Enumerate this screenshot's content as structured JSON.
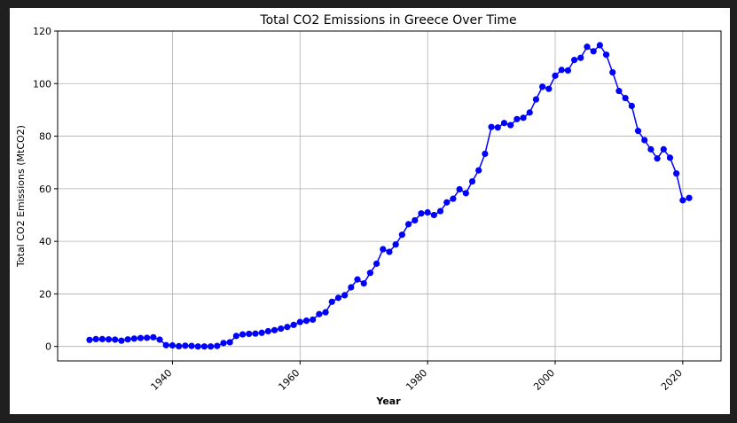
{
  "chart_data": {
    "type": "line",
    "title": "Total CO2 Emissions in Greece Over Time",
    "xlabel": "Year",
    "ylabel": "Total CO2 Emissions (MtCO2)",
    "xlim": [
      1922,
      2026
    ],
    "ylim": [
      -5.5,
      120
    ],
    "xticks": [
      "1940",
      "1960",
      "1980",
      "2000",
      "2020"
    ],
    "xtick_values": [
      1940,
      1960,
      1980,
      2000,
      2020
    ],
    "yticks": [
      "0",
      "20",
      "40",
      "60",
      "80",
      "100",
      "120"
    ],
    "ytick_values": [
      0,
      20,
      40,
      60,
      80,
      100,
      120
    ],
    "grid": true,
    "series_color": "#0000ff",
    "x": [
      1927,
      1928,
      1929,
      1930,
      1931,
      1932,
      1933,
      1934,
      1935,
      1936,
      1937,
      1938,
      1939,
      1940,
      1941,
      1942,
      1943,
      1944,
      1945,
      1946,
      1947,
      1948,
      1949,
      1950,
      1951,
      1952,
      1953,
      1954,
      1955,
      1956,
      1957,
      1958,
      1959,
      1960,
      1961,
      1962,
      1963,
      1964,
      1965,
      1966,
      1967,
      1968,
      1969,
      1970,
      1971,
      1972,
      1973,
      1974,
      1975,
      1976,
      1977,
      1978,
      1979,
      1980,
      1981,
      1982,
      1983,
      1984,
      1985,
      1986,
      1987,
      1988,
      1989,
      1990,
      1991,
      1992,
      1993,
      1994,
      1995,
      1996,
      1997,
      1998,
      1999,
      2000,
      2001,
      2002,
      2003,
      2004,
      2005,
      2006,
      2007,
      2008,
      2009,
      2010,
      2011,
      2012,
      2013,
      2014,
      2015,
      2016,
      2017,
      2018,
      2019,
      2020,
      2021
    ],
    "y": [
      2.5,
      2.8,
      2.8,
      2.7,
      2.6,
      2.2,
      2.7,
      3.0,
      3.2,
      3.3,
      3.5,
      2.6,
      0.5,
      0.4,
      0.1,
      0.3,
      0.2,
      0.0,
      0.0,
      0.0,
      0.2,
      1.3,
      1.6,
      4.0,
      4.6,
      4.8,
      4.9,
      5.2,
      5.8,
      6.2,
      6.8,
      7.4,
      8.2,
      9.3,
      9.8,
      10.2,
      12.3,
      13.0,
      17.0,
      18.5,
      19.5,
      22.5,
      25.5,
      24.0,
      28.0,
      31.5,
      37.0,
      36.0,
      38.8,
      42.5,
      46.5,
      48.0,
      50.6,
      51.0,
      50.0,
      51.5,
      54.8,
      56.2,
      59.8,
      58.3,
      62.8,
      67.0,
      73.3,
      83.5,
      83.3,
      85.0,
      84.2,
      86.5,
      87.0,
      89.0,
      94.0,
      98.8,
      98.0,
      103.0,
      105.2,
      105.0,
      109.0,
      109.8,
      114.0,
      112.3,
      114.6,
      111.0,
      104.3,
      97.2,
      94.5,
      91.5,
      82.0,
      78.5,
      75.0,
      71.5,
      75.0,
      71.8,
      65.8,
      55.6,
      56.5
    ]
  }
}
